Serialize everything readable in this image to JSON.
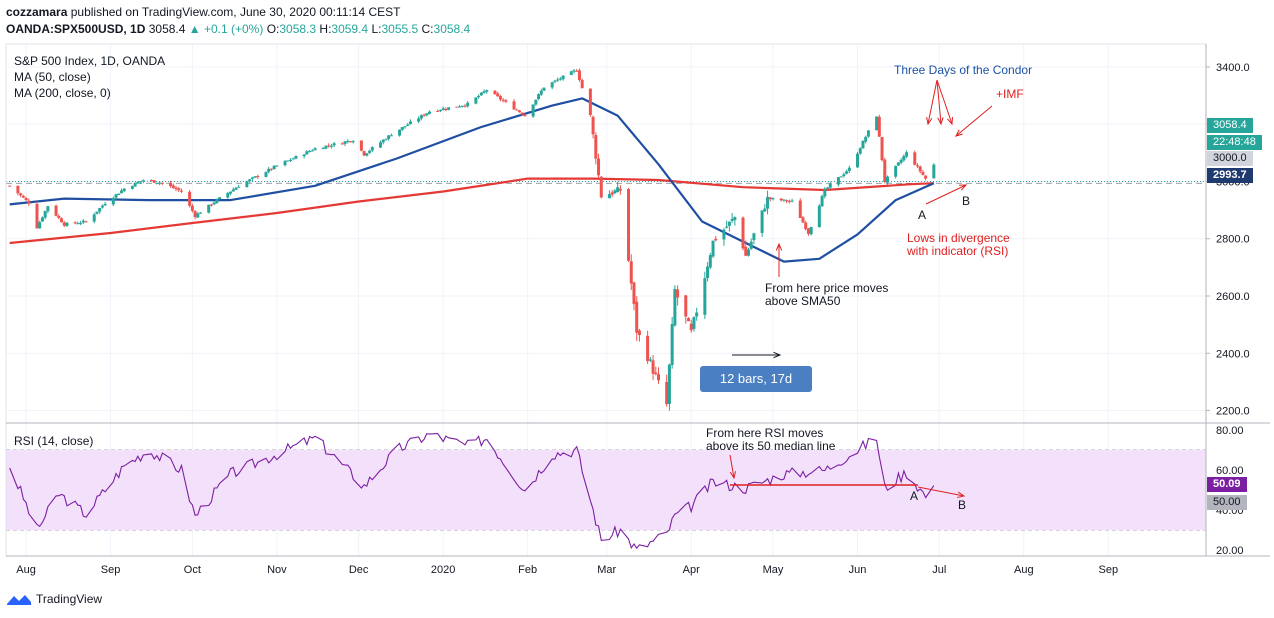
{
  "header": {
    "publisher": "cozzamara",
    "published_text": "published on TradingView.com, June 30, 2020 00:11:14 CEST",
    "symbol": "OANDA:SPX500USD, 1D",
    "last": "3058.4",
    "change": "▲ +0.1 (+0%)",
    "o_label": "O:",
    "o": "3058.3",
    "h_label": "H:",
    "h": "3059.4",
    "l_label": "L:",
    "l": "3055.5",
    "c_label": "C:",
    "c": "3058.4"
  },
  "legend": {
    "title": "S&P 500 Index, 1D, OANDA",
    "ma50": "MA (50, close)",
    "ma200": "MA (200, close, 0)"
  },
  "rsi_legend": "RSI (14, close)",
  "annotations": {
    "condor": "Three Days of the Condor",
    "imf": "+IMF",
    "lows_divergence_1": "Lows in divergence",
    "lows_divergence_2": "with indicator (RSI)",
    "sma50_1": "From here price moves",
    "sma50_2": "above SMA50",
    "bars_box": "12 bars, 17d",
    "rsi_1": "From here RSI moves",
    "rsi_2": "above its 50 median line",
    "price_A": "A",
    "price_B": "B",
    "rsi_A": "A",
    "rsi_B": "B"
  },
  "price_tags": {
    "last": "3058.4",
    "countdown": "22:48:48",
    "level": "3000.0",
    "ma": "2993.7"
  },
  "rsi_tags": {
    "rsi": "50.09",
    "level": "50.00"
  },
  "footer": {
    "brand": "TradingView"
  },
  "colors": {
    "up": "#26a69a",
    "down": "#ef5350",
    "ma50": "#1f4fa3",
    "ma200": "#e53935",
    "rsi_line": "#7b1fa2",
    "rsi_band": "#f3e0fb",
    "annotation_blue": "#1a52a5",
    "annotation_red": "#e02020"
  },
  "chart_data": [
    {
      "type": "candlestick",
      "title": "S&P 500 Index, 1D, OANDA",
      "y_ticks": [
        2200,
        2400,
        2600,
        2800,
        3000,
        3200,
        3400
      ],
      "y_tick_labels": [
        "2200.0",
        "2400.0",
        "2600.0",
        "2800.0",
        "3000.0",
        "3200.0",
        "3400.0"
      ],
      "ylim": [
        2160,
        3480
      ],
      "x_tick_labels": [
        "Aug",
        "Sep",
        "Oct",
        "Nov",
        "Dec",
        "2020",
        "Feb",
        "Mar",
        "Apr",
        "May",
        "Jun",
        "Jul",
        "Aug",
        "Sep"
      ],
      "close_path": [
        [
          "2019-07-26",
          2985
        ],
        [
          "2019-08-02",
          2925
        ],
        [
          "2019-08-05",
          2840
        ],
        [
          "2019-08-09",
          2915
        ],
        [
          "2019-08-15",
          2850
        ],
        [
          "2019-08-23",
          2860
        ],
        [
          "2019-08-30",
          2925
        ],
        [
          "2019-09-06",
          2975
        ],
        [
          "2019-09-13",
          3005
        ],
        [
          "2019-09-20",
          2995
        ],
        [
          "2019-09-27",
          2965
        ],
        [
          "2019-10-02",
          2880
        ],
        [
          "2019-10-10",
          2935
        ],
        [
          "2019-10-18",
          2985
        ],
        [
          "2019-10-25",
          3020
        ],
        [
          "2019-11-01",
          3055
        ],
        [
          "2019-11-15",
          3115
        ],
        [
          "2019-11-29",
          3145
        ],
        [
          "2019-12-03",
          3095
        ],
        [
          "2019-12-13",
          3165
        ],
        [
          "2019-12-27",
          3245
        ],
        [
          "2020-01-10",
          3270
        ],
        [
          "2020-01-17",
          3320
        ],
        [
          "2020-01-31",
          3230
        ],
        [
          "2020-02-07",
          3330
        ],
        [
          "2020-02-19",
          3390
        ],
        [
          "2020-02-24",
          3230
        ],
        [
          "2020-02-28",
          2950
        ],
        [
          "2020-03-06",
          2970
        ],
        [
          "2020-03-12",
          2480
        ],
        [
          "2020-03-16",
          2390
        ],
        [
          "2020-03-23",
          2220
        ],
        [
          "2020-03-26",
          2620
        ],
        [
          "2020-04-01",
          2470
        ],
        [
          "2020-04-09",
          2790
        ],
        [
          "2020-04-17",
          2875
        ],
        [
          "2020-04-21",
          2740
        ],
        [
          "2020-04-29",
          2940
        ],
        [
          "2020-05-08",
          2930
        ],
        [
          "2020-05-14",
          2820
        ],
        [
          "2020-05-20",
          2970
        ],
        [
          "2020-05-29",
          3045
        ],
        [
          "2020-06-08",
          3230
        ],
        [
          "2020-06-11",
          3000
        ],
        [
          "2020-06-19",
          3100
        ],
        [
          "2020-06-26",
          3010
        ],
        [
          "2020-06-29",
          3058
        ]
      ],
      "series": [
        {
          "name": "MA (50, close)",
          "values": [
            [
              "2019-07-26",
              2920
            ],
            [
              "2019-08-15",
              2940
            ],
            [
              "2019-09-15",
              2935
            ],
            [
              "2019-10-15",
              2935
            ],
            [
              "2019-11-15",
              2985
            ],
            [
              "2019-12-15",
              3080
            ],
            [
              "2020-01-15",
              3190
            ],
            [
              "2020-02-10",
              3265
            ],
            [
              "2020-02-21",
              3290
            ],
            [
              "2020-03-05",
              3230
            ],
            [
              "2020-03-20",
              3060
            ],
            [
              "2020-04-05",
              2860
            ],
            [
              "2020-04-20",
              2790
            ],
            [
              "2020-05-05",
              2720
            ],
            [
              "2020-05-18",
              2730
            ],
            [
              "2020-06-01",
              2815
            ],
            [
              "2020-06-15",
              2935
            ],
            [
              "2020-06-29",
              2994
            ]
          ]
        },
        {
          "name": "MA (200, close, 0)",
          "values": [
            [
              "2019-07-26",
              2785
            ],
            [
              "2019-09-01",
              2820
            ],
            [
              "2019-10-01",
              2855
            ],
            [
              "2019-11-01",
              2890
            ],
            [
              "2019-12-01",
              2930
            ],
            [
              "2020-01-01",
              2965
            ],
            [
              "2020-02-01",
              3010
            ],
            [
              "2020-02-25",
              3010
            ],
            [
              "2020-03-20",
              3005
            ],
            [
              "2020-04-20",
              2980
            ],
            [
              "2020-05-20",
              2970
            ],
            [
              "2020-06-20",
              2990
            ],
            [
              "2020-06-29",
              2994
            ]
          ]
        }
      ],
      "last_price": 3058.4,
      "horizontal_lines": [
        3000.0,
        2993.7
      ]
    },
    {
      "type": "line",
      "title": "RSI (14, close)",
      "y_ticks": [
        20,
        40,
        50,
        60,
        80
      ],
      "y_tick_labels": [
        "20.00",
        "40.00",
        "50.00",
        "60.00",
        "80.00"
      ],
      "ylim": [
        17,
        83
      ],
      "band": [
        30,
        70
      ],
      "series": [
        {
          "name": "RSI (14, close)",
          "values": [
            [
              "2019-07-26",
              62
            ],
            [
              "2019-08-05",
              30
            ],
            [
              "2019-08-13",
              48
            ],
            [
              "2019-08-23",
              38
            ],
            [
              "2019-09-06",
              62
            ],
            [
              "2019-09-15",
              70
            ],
            [
              "2019-09-27",
              60
            ],
            [
              "2019-10-02",
              37
            ],
            [
              "2019-10-15",
              58
            ],
            [
              "2019-11-01",
              68
            ],
            [
              "2019-11-15",
              76
            ],
            [
              "2019-12-03",
              52
            ],
            [
              "2019-12-15",
              70
            ],
            [
              "2019-12-27",
              78
            ],
            [
              "2020-01-10",
              72
            ],
            [
              "2020-01-17",
              76
            ],
            [
              "2020-01-31",
              50
            ],
            [
              "2020-02-10",
              68
            ],
            [
              "2020-02-19",
              70
            ],
            [
              "2020-02-28",
              25
            ],
            [
              "2020-03-06",
              30
            ],
            [
              "2020-03-12",
              20
            ],
            [
              "2020-03-23",
              28
            ],
            [
              "2020-03-26",
              37
            ],
            [
              "2020-04-01",
              42
            ],
            [
              "2020-04-09",
              54
            ],
            [
              "2020-04-21",
              51
            ],
            [
              "2020-05-05",
              58
            ],
            [
              "2020-05-20",
              60
            ],
            [
              "2020-06-08",
              76
            ],
            [
              "2020-06-11",
              51
            ],
            [
              "2020-06-19",
              59
            ],
            [
              "2020-06-26",
              47
            ],
            [
              "2020-06-29",
              50.09
            ]
          ]
        }
      ],
      "horizontal_lines": [
        50.0
      ]
    }
  ]
}
